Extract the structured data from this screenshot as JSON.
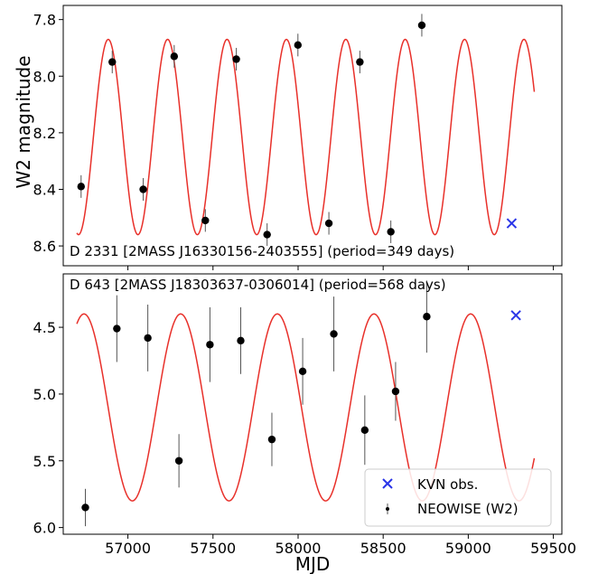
{
  "chart_data": [
    {
      "type": "scatter",
      "title": "D 2331 [2MASS J16330156-2403555] (period=349 days)",
      "ylabel": "W2 magnitude",
      "xlabel": "",
      "xlim": [
        56620,
        59550
      ],
      "ylim": [
        8.67,
        7.75
      ],
      "y_inverted": true,
      "yticks": [
        7.8,
        8.0,
        8.2,
        8.4,
        8.6
      ],
      "ytick_labels": [
        "7.8",
        "8.0",
        "8.2",
        "8.4",
        "8.6"
      ],
      "period": 349,
      "model": {
        "mean": 8.215,
        "amplitude": 0.345,
        "phase_zero_mjd": 56710,
        "color": "#e8302a",
        "x_range": [
          56700,
          59390
        ]
      },
      "neowise": {
        "color": "#000000",
        "points": [
          {
            "x": 56725,
            "y": 8.39,
            "err": 0.04
          },
          {
            "x": 56908,
            "y": 7.95,
            "err": 0.04
          },
          {
            "x": 57090,
            "y": 8.4,
            "err": 0.04
          },
          {
            "x": 57272,
            "y": 7.93,
            "err": 0.04
          },
          {
            "x": 57455,
            "y": 8.51,
            "err": 0.04
          },
          {
            "x": 57637,
            "y": 7.94,
            "err": 0.04
          },
          {
            "x": 57818,
            "y": 8.56,
            "err": 0.04
          },
          {
            "x": 57999,
            "y": 7.89,
            "err": 0.04
          },
          {
            "x": 58181,
            "y": 8.52,
            "err": 0.04
          },
          {
            "x": 58363,
            "y": 7.95,
            "err": 0.04
          },
          {
            "x": 58545,
            "y": 8.55,
            "err": 0.04
          },
          {
            "x": 58727,
            "y": 7.82,
            "err": 0.04
          }
        ]
      },
      "kvn": {
        "color": "#2a35e8",
        "points": [
          {
            "x": 59255,
            "y": 8.52
          }
        ]
      }
    },
    {
      "type": "scatter",
      "title": "D 643 [2MASS J18303637-0306014] (period=568 days)",
      "ylabel": "",
      "xlabel": "MJD",
      "xlim": [
        56620,
        59550
      ],
      "ylim": [
        6.05,
        4.1
      ],
      "y_inverted": true,
      "yticks": [
        4.5,
        5.0,
        5.5,
        6.0
      ],
      "ytick_labels": [
        "4.5",
        "5.0",
        "5.5",
        "6.0"
      ],
      "xticks": [
        57000,
        57500,
        58000,
        58500,
        59000,
        59500
      ],
      "xtick_labels": [
        "57000",
        "57500",
        "58000",
        "58500",
        "59000",
        "59500"
      ],
      "period": 568,
      "model": {
        "mean": 5.1,
        "amplitude": 0.7,
        "phase_zero_mjd": 57026,
        "color": "#e8302a",
        "x_range": [
          56700,
          59390
        ]
      },
      "neowise": {
        "color": "#000000",
        "points": [
          {
            "x": 56750,
            "y": 5.85,
            "err": 0.14
          },
          {
            "x": 56935,
            "y": 4.51,
            "err": 0.25
          },
          {
            "x": 57117,
            "y": 4.58,
            "err": 0.25
          },
          {
            "x": 57300,
            "y": 5.5,
            "err": 0.2
          },
          {
            "x": 57482,
            "y": 4.63,
            "err": 0.28
          },
          {
            "x": 57663,
            "y": 4.6,
            "err": 0.25
          },
          {
            "x": 57846,
            "y": 5.34,
            "err": 0.2
          },
          {
            "x": 58027,
            "y": 4.83,
            "err": 0.25
          },
          {
            "x": 58210,
            "y": 4.55,
            "err": 0.28
          },
          {
            "x": 58392,
            "y": 5.27,
            "err": 0.26
          },
          {
            "x": 58573,
            "y": 4.98,
            "err": 0.22
          },
          {
            "x": 58756,
            "y": 4.42,
            "err": 0.27
          }
        ]
      },
      "kvn": {
        "color": "#2a35e8",
        "points": [
          {
            "x": 59280,
            "y": 4.41
          }
        ]
      },
      "legend": {
        "placement": "lower-right",
        "entries": [
          {
            "label": "KVN obs.",
            "marker": "x",
            "color": "#2a35e8"
          },
          {
            "label": "NEOWISE (W2)",
            "marker": "errorbar-point",
            "color": "#000000"
          }
        ]
      }
    }
  ]
}
